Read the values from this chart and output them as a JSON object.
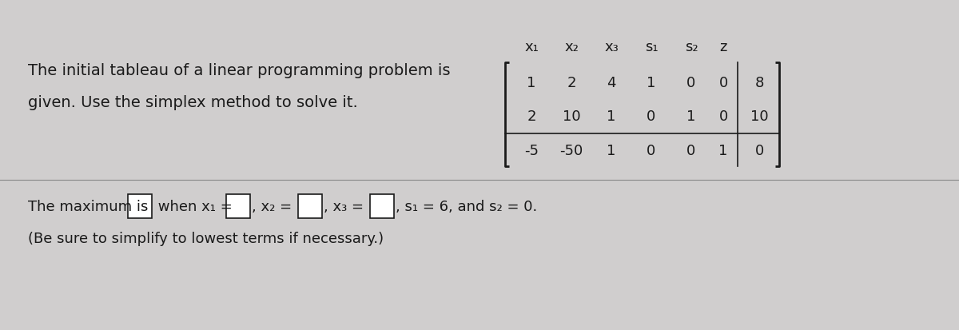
{
  "bg_color": "#d0cece",
  "title_text_line1": "The initial tableau of a linear programming problem is",
  "title_text_line2": "given. Use the simplex method to solve it.",
  "matrix_headers": [
    "x₁",
    "x₂",
    "x₃",
    "s₁",
    "s₂",
    "z"
  ],
  "matrix_rows": [
    [
      1,
      2,
      4,
      1,
      0,
      0,
      8
    ],
    [
      2,
      10,
      1,
      0,
      1,
      0,
      10
    ],
    [
      -5,
      -50,
      1,
      0,
      0,
      1,
      0
    ]
  ],
  "bottom_text_line1": "The maximum is □ when x₁ = □, x₂ = □, x₃ = □, s₁ = 6, and s₂ = 0.",
  "bottom_text_line2": "(Be sure to simplify to lowest terms if necessary.)",
  "font_size_main": 14,
  "font_size_matrix": 13,
  "font_size_bottom": 13,
  "text_color": "#1a1a1a"
}
